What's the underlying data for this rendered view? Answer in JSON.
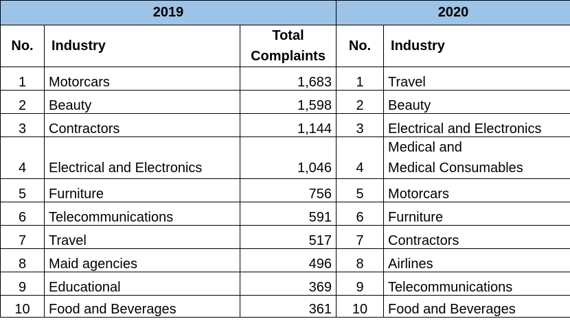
{
  "header_fill": "#9DC3E6",
  "years": {
    "left": "2019",
    "right": "2020"
  },
  "columns": {
    "no": "No.",
    "industry": "Industry",
    "total_line1": "Total",
    "total_line2": "Complaints"
  },
  "rows": [
    {
      "no2019": "1",
      "ind2019": "Motorcars",
      "total2019": "1,683",
      "no2020": "1",
      "ind2020_l1": "Travel",
      "ind2020_l2": ""
    },
    {
      "no2019": "2",
      "ind2019": "Beauty",
      "total2019": "1,598",
      "no2020": "2",
      "ind2020_l1": "Beauty",
      "ind2020_l2": ""
    },
    {
      "no2019": "3",
      "ind2019": "Contractors",
      "total2019": "1,144",
      "no2020": "3",
      "ind2020_l1": "Electrical and Electronics",
      "ind2020_l2": ""
    },
    {
      "no2019": "4",
      "ind2019": "Electrical and Electronics",
      "total2019": "1,046",
      "no2020": "4",
      "ind2020_l1": "Medical and",
      "ind2020_l2": "Medical Consumables"
    },
    {
      "no2019": "5",
      "ind2019": "Furniture",
      "total2019": "756",
      "no2020": "5",
      "ind2020_l1": "Motorcars",
      "ind2020_l2": ""
    },
    {
      "no2019": "6",
      "ind2019": "Telecommunications",
      "total2019": "591",
      "no2020": "6",
      "ind2020_l1": "Furniture",
      "ind2020_l2": ""
    },
    {
      "no2019": "7",
      "ind2019": "Travel",
      "total2019": "517",
      "no2020": "7",
      "ind2020_l1": "Contractors",
      "ind2020_l2": ""
    },
    {
      "no2019": "8",
      "ind2019": "Maid agencies",
      "total2019": "496",
      "no2020": "8",
      "ind2020_l1": "Airlines",
      "ind2020_l2": ""
    },
    {
      "no2019": "9",
      "ind2019": "Educational",
      "total2019": "369",
      "no2020": "9",
      "ind2020_l1": "Telecommunications",
      "ind2020_l2": ""
    },
    {
      "no2019": "10",
      "ind2019": "Food and Beverages",
      "total2019": "361",
      "no2020": "10",
      "ind2020_l1": "Food and Beverages",
      "ind2020_l2": ""
    }
  ]
}
